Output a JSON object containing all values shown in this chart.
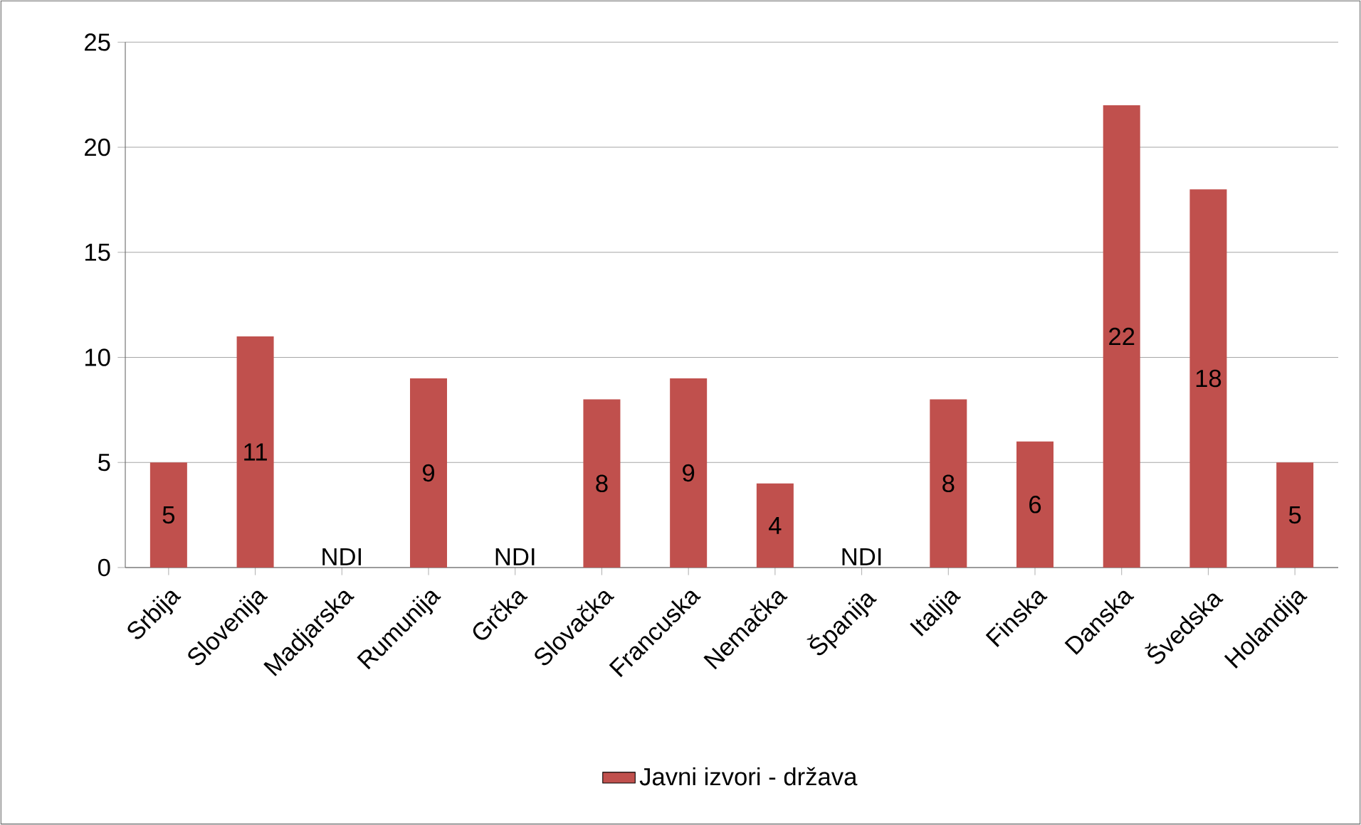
{
  "chart_data": {
    "type": "bar",
    "categories": [
      "Srbija",
      "Slovenija",
      "Madjarska",
      "Rumunija",
      "Grčka",
      "Slovačka",
      "Francuska",
      "Nemačka",
      "Španija",
      "Italija",
      "Finska",
      "Danska",
      "Švedska",
      "Holandija"
    ],
    "series": [
      {
        "name": "Javni izvori - država",
        "color": "#c0504d",
        "values": [
          5,
          11,
          null,
          9,
          null,
          8,
          9,
          4,
          null,
          8,
          6,
          22,
          18,
          5
        ]
      }
    ],
    "value_labels": [
      "5",
      "11",
      "NDI",
      "9",
      "NDI",
      "8",
      "9",
      "4",
      "NDI",
      "8",
      "6",
      "22",
      "18",
      "5"
    ],
    "ylim": [
      0,
      25
    ],
    "yticks": [
      0,
      5,
      10,
      15,
      20,
      25
    ],
    "grid": "y",
    "legend": "bottom"
  }
}
